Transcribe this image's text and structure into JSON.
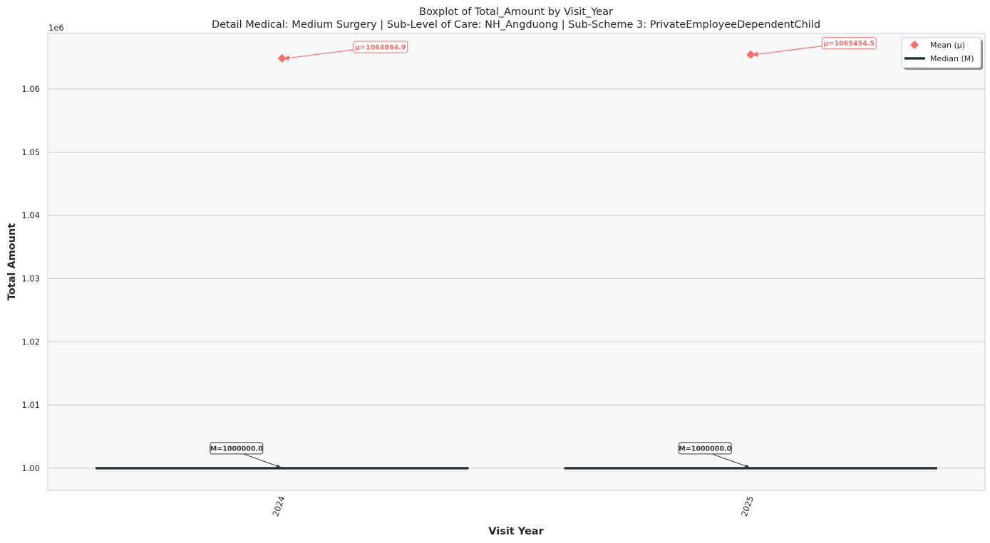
{
  "chart_data": {
    "type": "box",
    "title": "Boxplot of Total_Amount by Visit_Year",
    "subtitle": "Detail Medical: Medium Surgery | Sub-Level of Care: NH_Angduong | Sub-Scheme 3: PrivateEmployeeDependentChild",
    "xlabel": "Visit Year",
    "ylabel": "Total Amount",
    "y_offset_label": "1e6",
    "y_scale": 1000000,
    "categories": [
      "2024",
      "2025"
    ],
    "median": [
      1000000.0,
      1000000.0
    ],
    "mean": [
      1064864.9,
      1065454.5
    ],
    "median_labels": [
      "M=1000000.0",
      "M=1000000.0"
    ],
    "mean_labels": [
      "μ=1064864.9",
      "μ=1065454.5"
    ],
    "ylim": [
      996500,
      1068800
    ],
    "yticks": [
      1000000,
      1010000,
      1020000,
      1030000,
      1040000,
      1050000,
      1060000
    ],
    "ytick_labels": [
      "1.00",
      "1.01",
      "1.02",
      "1.03",
      "1.04",
      "1.05",
      "1.06"
    ],
    "legend": {
      "placement": "top-right",
      "items": [
        {
          "label": "Mean (μ)",
          "marker": "diamond",
          "color": "#ff6b6b"
        },
        {
          "label": "Median (M)",
          "marker": "line",
          "color": "#2d3436"
        }
      ]
    },
    "grid": true,
    "colors": {
      "mean": "#ff6b6b",
      "median": "#2d3436",
      "plot_bg": "#f8f8f8",
      "grid": "#cccccc",
      "spine": "#cccccc"
    }
  }
}
